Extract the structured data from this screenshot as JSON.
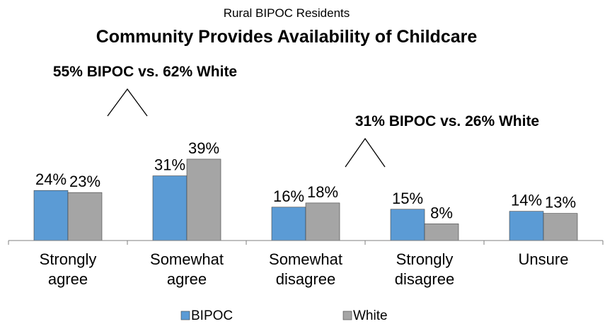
{
  "chart_data": {
    "type": "bar",
    "subtitle": "Rural BIPOC Residents",
    "title": "Community Provides Availability of Childcare",
    "categories": [
      [
        "Strongly",
        "agree"
      ],
      [
        "Somewhat",
        "agree"
      ],
      [
        "Somewhat",
        "disagree"
      ],
      [
        "Strongly",
        "disagree"
      ],
      [
        "Unsure"
      ]
    ],
    "series": [
      {
        "name": "BIPOC",
        "values": [
          24,
          31,
          16,
          15,
          14
        ],
        "labels": [
          "24%",
          "31%",
          "16%",
          "15%",
          "14%"
        ],
        "color": "#5b9bd5"
      },
      {
        "name": "White",
        "values": [
          23,
          39,
          18,
          8,
          13
        ],
        "labels": [
          "23%",
          "39%",
          "18%",
          "8%",
          "13%"
        ],
        "color": "#a5a5a5"
      }
    ],
    "annotations": [
      {
        "text": "55% BIPOC vs. 62% White",
        "spans_categories": [
          0,
          1
        ]
      },
      {
        "text": "31% BIPOC vs. 26% White",
        "spans_categories": [
          2,
          3
        ]
      }
    ],
    "ylim": [
      0,
      45
    ],
    "xlabel": "",
    "ylabel": "",
    "grid": false,
    "legend": "bottom"
  }
}
